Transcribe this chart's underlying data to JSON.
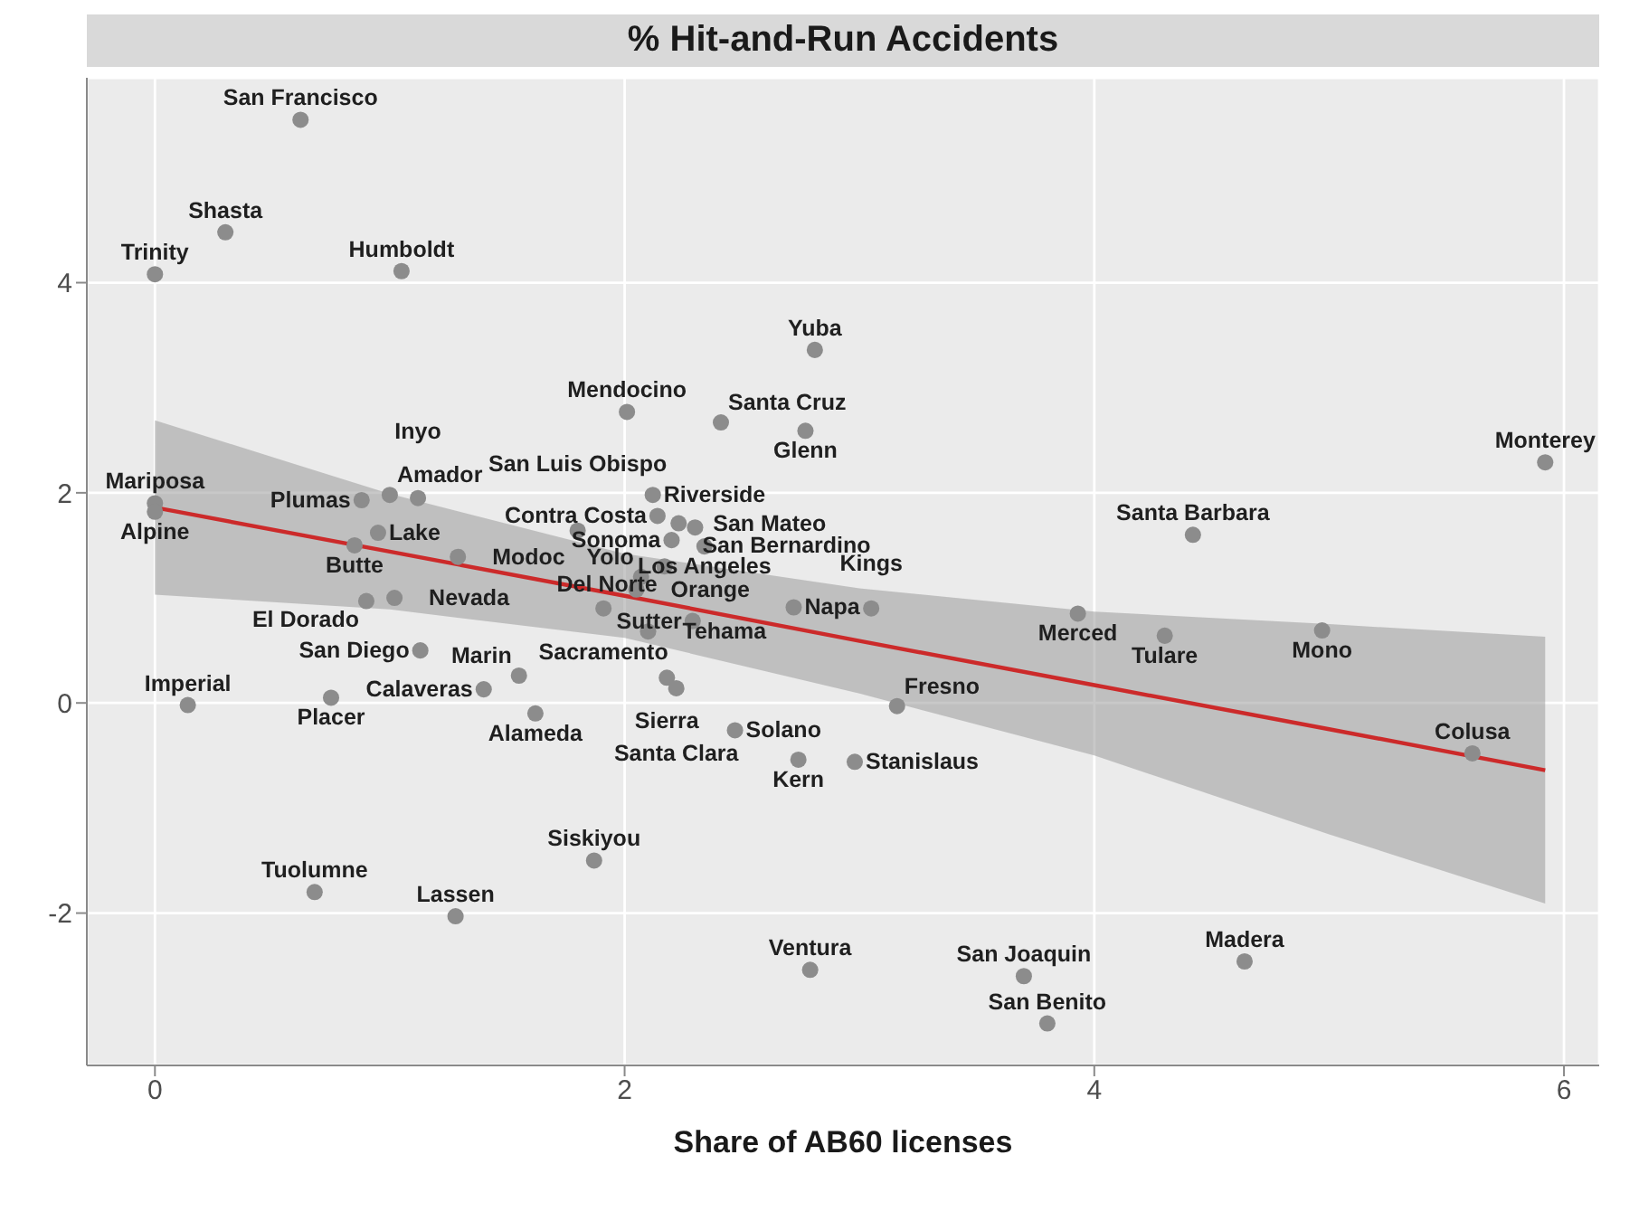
{
  "chart_data": {
    "type": "scatter",
    "title": "% Hit-and-Run Accidents",
    "xlabel": "Share of AB60 licenses",
    "xlim": [
      -0.29,
      6.15
    ],
    "ylim": [
      -3.45,
      5.95
    ],
    "xticks": [
      0,
      2,
      4,
      6
    ],
    "yticks": [
      -2,
      0,
      2,
      4
    ],
    "grid": true,
    "series": [
      {
        "marker": "circle",
        "color": "#8c8c8c",
        "x": [
          0.62,
          0.3,
          0.0,
          1.05,
          0.0,
          0.0,
          1.0,
          1.12,
          0.88,
          0.95,
          0.85,
          1.8,
          1.29,
          1.02,
          0.9,
          1.91,
          1.13,
          0.14,
          0.75,
          1.4,
          1.55,
          1.62,
          0.68,
          1.28,
          1.87,
          2.1,
          2.07,
          2.05,
          2.18,
          2.22,
          2.29,
          2.72,
          3.05,
          3.16,
          2.47,
          2.74,
          2.98,
          2.79,
          3.7,
          3.8,
          2.01,
          2.41,
          2.81,
          2.77,
          2.12,
          2.14,
          2.23,
          2.3,
          2.2,
          2.34,
          2.17,
          3.93,
          4.42,
          4.3,
          4.97,
          5.61,
          4.64,
          5.92
        ],
        "values": [
          5.55,
          4.48,
          4.08,
          4.11,
          1.9,
          1.82,
          1.98,
          1.95,
          1.93,
          1.62,
          1.5,
          1.64,
          1.39,
          1.0,
          0.97,
          0.9,
          0.5,
          -0.02,
          0.05,
          0.13,
          0.26,
          -0.1,
          -1.8,
          -2.03,
          -1.5,
          0.68,
          1.2,
          1.08,
          0.24,
          0.14,
          0.78,
          0.91,
          0.9,
          -0.03,
          -0.26,
          -0.54,
          -0.56,
          -2.54,
          -2.6,
          -3.05,
          2.77,
          2.67,
          3.36,
          2.59,
          1.98,
          1.78,
          1.71,
          1.67,
          1.55,
          1.49,
          1.3,
          0.85,
          1.6,
          0.64,
          0.69,
          -0.48,
          -2.46,
          2.29
        ]
      },
      {
        "type": "line",
        "color": "#cc2a2a",
        "x": [
          0,
          1,
          2,
          3,
          4,
          5,
          5.92
        ],
        "values": [
          1.86,
          1.44,
          1.02,
          0.59,
          0.17,
          -0.25,
          -0.64
        ],
        "lower": [
          1.03,
          0.89,
          0.62,
          0.09,
          -0.5,
          -1.25,
          -1.91
        ],
        "upper": [
          2.69,
          1.99,
          1.42,
          1.09,
          0.87,
          0.75,
          0.63
        ]
      }
    ],
    "annotations": [
      {
        "text": "San Francisco",
        "x": 0.62,
        "y": 5.55
      },
      {
        "text": "Shasta",
        "x": 0.3,
        "y": 4.48
      },
      {
        "text": "Trinity",
        "x": 0.0,
        "y": 4.08
      },
      {
        "text": "Humboldt",
        "x": 1.05,
        "y": 4.11
      },
      {
        "text": "Mariposa",
        "x": 0.0,
        "y": 1.9
      },
      {
        "text": "Alpine",
        "x": 0.0,
        "y": 1.82
      },
      {
        "text": "Amador",
        "x": 1.0,
        "y": 1.98
      },
      {
        "text": "Inyo",
        "x": 1.12,
        "y": 1.95
      },
      {
        "text": "Plumas",
        "x": 0.88,
        "y": 1.93
      },
      {
        "text": "Lake",
        "x": 0.95,
        "y": 1.62
      },
      {
        "text": "Butte",
        "x": 0.85,
        "y": 1.5
      },
      {
        "text": "San Luis Obispo",
        "x": 1.8,
        "y": 1.64
      },
      {
        "text": "Modoc",
        "x": 1.29,
        "y": 1.39
      },
      {
        "text": "Nevada",
        "x": 1.02,
        "y": 1.0
      },
      {
        "text": "El Dorado",
        "x": 0.9,
        "y": 0.97
      },
      {
        "text": "Sacramento",
        "x": 1.91,
        "y": 0.9
      },
      {
        "text": "San Diego",
        "x": 1.13,
        "y": 0.5
      },
      {
        "text": "Imperial",
        "x": 0.14,
        "y": -0.02
      },
      {
        "text": "Placer",
        "x": 0.75,
        "y": 0.05
      },
      {
        "text": "Calaveras",
        "x": 1.4,
        "y": 0.13
      },
      {
        "text": "Marin",
        "x": 1.55,
        "y": 0.26
      },
      {
        "text": "Alameda",
        "x": 1.62,
        "y": -0.1
      },
      {
        "text": "Tuolumne",
        "x": 0.68,
        "y": -1.8
      },
      {
        "text": "Lassen",
        "x": 1.28,
        "y": -2.03
      },
      {
        "text": "Siskiyou",
        "x": 1.87,
        "y": -1.5
      },
      {
        "text": "Tehama",
        "x": 2.1,
        "y": 0.68
      },
      {
        "text": "Yolo",
        "x": 2.07,
        "y": 1.2
      },
      {
        "text": "Orange",
        "x": 2.05,
        "y": 1.08
      },
      {
        "text": "Sierra",
        "x": 2.18,
        "y": 0.24
      },
      {
        "text": "Santa Clara",
        "x": 2.22,
        "y": 0.14
      },
      {
        "text": "Sutter",
        "x": 2.29,
        "y": 0.78
      },
      {
        "text": "Napa",
        "x": 2.72,
        "y": 0.91
      },
      {
        "text": "Kings",
        "x": 3.05,
        "y": 0.9
      },
      {
        "text": "Fresno",
        "x": 3.16,
        "y": -0.03
      },
      {
        "text": "Solano",
        "x": 2.47,
        "y": -0.26
      },
      {
        "text": "Kern",
        "x": 2.74,
        "y": -0.54
      },
      {
        "text": "Stanislaus",
        "x": 2.98,
        "y": -0.56
      },
      {
        "text": "Ventura",
        "x": 2.79,
        "y": -2.54
      },
      {
        "text": "San Joaquin",
        "x": 3.7,
        "y": -2.6
      },
      {
        "text": "San Benito",
        "x": 3.8,
        "y": -3.05
      },
      {
        "text": "Mendocino",
        "x": 2.01,
        "y": 2.77
      },
      {
        "text": "Santa Cruz",
        "x": 2.41,
        "y": 2.67
      },
      {
        "text": "Yuba",
        "x": 2.81,
        "y": 3.36
      },
      {
        "text": "Glenn",
        "x": 2.77,
        "y": 2.59
      },
      {
        "text": "Riverside",
        "x": 2.12,
        "y": 1.98
      },
      {
        "text": "Contra Costa",
        "x": 2.14,
        "y": 1.78
      },
      {
        "text": "San Mateo",
        "x": 2.23,
        "y": 1.71
      },
      {
        "text": "San Bernardino",
        "x": 2.3,
        "y": 1.67
      },
      {
        "text": "Sonoma",
        "x": 2.2,
        "y": 1.55
      },
      {
        "text": "Los Angeles",
        "x": 2.34,
        "y": 1.49
      },
      {
        "text": "Del Norte",
        "x": 2.17,
        "y": 1.3
      },
      {
        "text": "Merced",
        "x": 3.93,
        "y": 0.85
      },
      {
        "text": "Santa Barbara",
        "x": 4.42,
        "y": 1.6
      },
      {
        "text": "Tulare",
        "x": 4.3,
        "y": 0.64
      },
      {
        "text": "Mono",
        "x": 4.97,
        "y": 0.69
      },
      {
        "text": "Colusa",
        "x": 5.61,
        "y": -0.48
      },
      {
        "text": "Madera",
        "x": 4.64,
        "y": -2.46
      },
      {
        "text": "Monterey",
        "x": 5.92,
        "y": 2.29
      }
    ]
  }
}
